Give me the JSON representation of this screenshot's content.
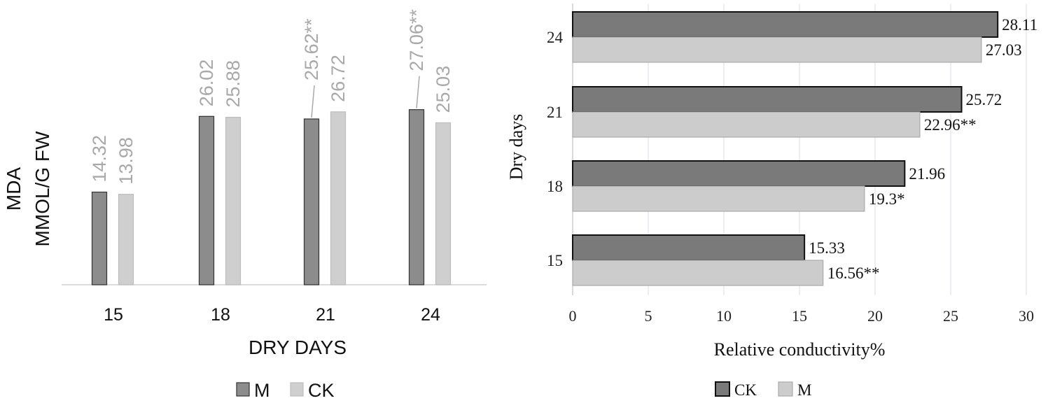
{
  "chart_data": [
    {
      "type": "bar",
      "orientation": "vertical",
      "ylabel_lines": [
        "MDA",
        "MMOL/G  FW"
      ],
      "xlabel": "DRY  DAYS",
      "categories": [
        "15",
        "18",
        "21",
        "24"
      ],
      "ylim": [
        0,
        30
      ],
      "gridlines": false,
      "legend_position": "bottom",
      "series": [
        {
          "name": "M",
          "color": "#8c8c8c",
          "values": [
            14.32,
            26.02,
            25.62,
            27.06
          ],
          "labels": [
            "14.32",
            "26.02",
            "25.62**",
            "27.06**"
          ]
        },
        {
          "name": "CK",
          "color": "#cfcfcf",
          "values": [
            13.98,
            25.88,
            26.72,
            25.03
          ],
          "labels": [
            "13.98",
            "25.88",
            "26.72",
            "25.03"
          ]
        }
      ]
    },
    {
      "type": "bar",
      "orientation": "horizontal",
      "ylabel": "Dry days",
      "xlabel": "Relative conductivity%",
      "categories": [
        "15",
        "18",
        "21",
        "24"
      ],
      "xlim": [
        0,
        30
      ],
      "xticks": [
        "0",
        "5",
        "10",
        "15",
        "20",
        "25",
        "30"
      ],
      "gridlines": true,
      "legend_position": "bottom",
      "series": [
        {
          "name": "CK",
          "color": "#7a7a7a",
          "values": [
            15.33,
            21.96,
            25.72,
            28.11
          ],
          "labels": [
            "15.33",
            "21.96",
            "25.72",
            "28.11"
          ]
        },
        {
          "name": "M",
          "color": "#cccccc",
          "values": [
            16.56,
            19.3,
            22.96,
            27.03
          ],
          "labels": [
            "16.56**",
            "19.3*",
            "22.96**",
            "27.03"
          ]
        }
      ]
    }
  ]
}
